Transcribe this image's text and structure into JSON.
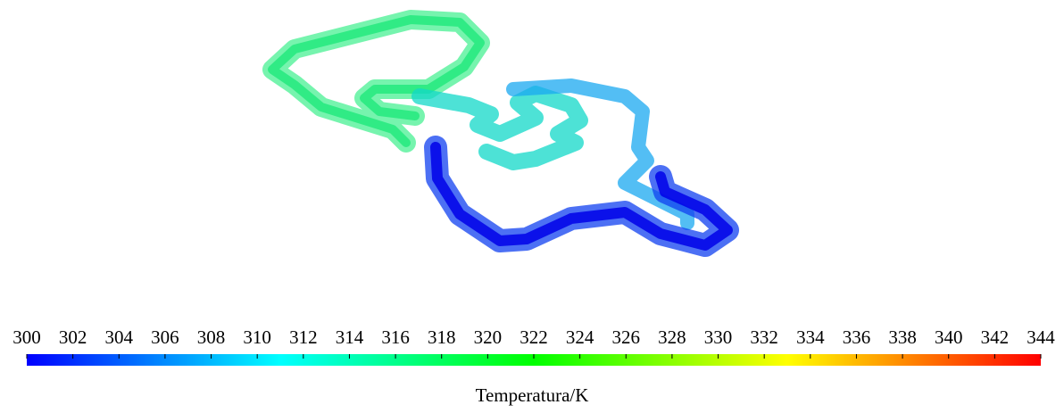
{
  "chart_data": {
    "type": "colorbar",
    "xlabel": "Temperatura/K",
    "xlim": [
      300,
      344
    ],
    "xticks": [
      300,
      302,
      304,
      306,
      308,
      310,
      312,
      314,
      316,
      318,
      320,
      322,
      324,
      326,
      328,
      330,
      332,
      334,
      336,
      338,
      340,
      342,
      344
    ],
    "colors": [
      "#0000ff",
      "#00ffff",
      "#00ff00",
      "#ffff00",
      "#ff0000"
    ]
  }
}
